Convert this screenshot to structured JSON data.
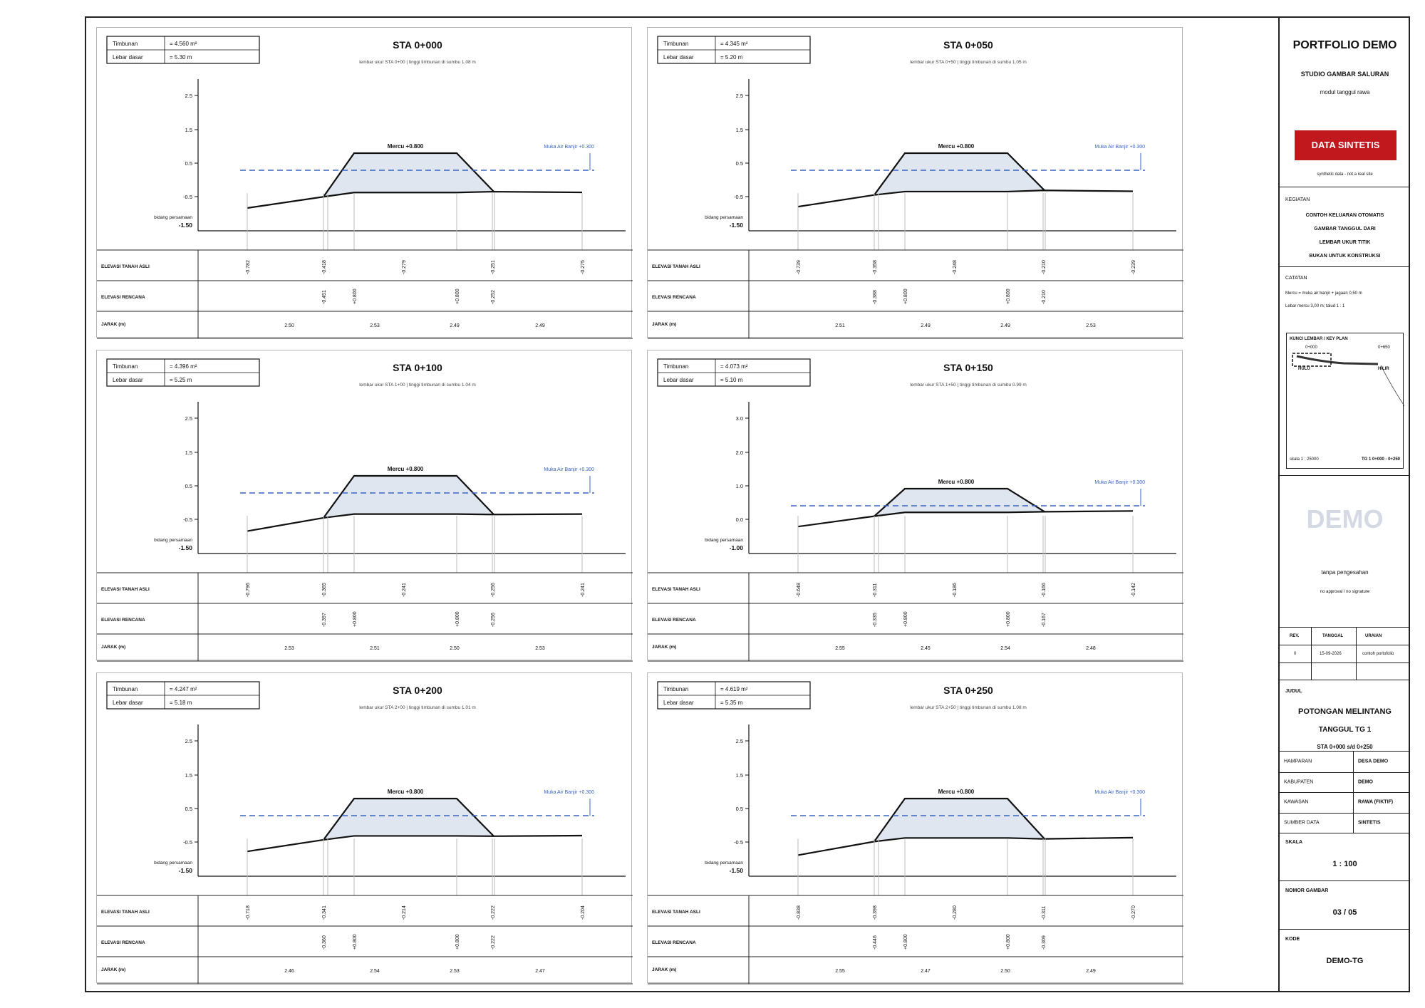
{
  "panels": [
    {
      "sta": "STA 0+000",
      "subtitle": "lembar ukur STA 0+00   |   tinggi timbunan di sumbu 1.08 m",
      "info": {
        "timbunan_label": "Timbunan",
        "timbunan_value": "= 4.560 m²",
        "lebar_label": "Lebar dasar",
        "lebar_value": "= 5.30 m"
      },
      "y_ticks": [
        "2.5",
        "1.5",
        "0.5",
        "-0.5"
      ],
      "datum": "-1.50",
      "datum_label": "bidang persamaan",
      "mercu_label": "Mercu +0.800",
      "water_label": "Muka Air Banjir +0.300",
      "row_labels": [
        "ELEVASI TANAH ASLI",
        "ELEVASI RENCANA",
        "JARAK (m)"
      ],
      "tanah_asli": [
        "-0.782",
        "-0.418",
        "-0.279",
        "-0.251",
        "-0.275"
      ],
      "rencana": [
        "-0.451",
        "+0.800",
        "+0.800",
        "-0.252"
      ],
      "jarak": [
        "2.50",
        "2.53",
        "2.49",
        "2.49"
      ]
    },
    {
      "sta": "STA 0+050",
      "subtitle": "lembar ukur STA 0+50   |   tinggi timbunan di sumbu 1.05 m",
      "info": {
        "timbunan_label": "Timbunan",
        "timbunan_value": "= 4.345 m²",
        "lebar_label": "Lebar dasar",
        "lebar_value": "= 5.20 m"
      },
      "y_ticks": [
        "2.5",
        "1.5",
        "0.5",
        "-0.5"
      ],
      "datum": "-1.50",
      "datum_label": "bidang persamaan",
      "mercu_label": "Mercu +0.800",
      "water_label": "Muka Air Banjir +0.300",
      "row_labels": [
        "ELEVASI TANAH ASLI",
        "ELEVASI RENCANA",
        "JARAK (m)"
      ],
      "tanah_asli": [
        "-0.739",
        "-0.358",
        "-0.248",
        "-0.210",
        "-0.239"
      ],
      "rencana": [
        "-0.388",
        "+0.800",
        "+0.800",
        "-0.210"
      ],
      "jarak": [
        "2.51",
        "2.49",
        "2.49",
        "2.53"
      ]
    },
    {
      "sta": "STA 0+100",
      "subtitle": "lembar ukur STA 1+00   |   tinggi timbunan di sumbu 1.04 m",
      "info": {
        "timbunan_label": "Timbunan",
        "timbunan_value": "= 4.396 m²",
        "lebar_label": "Lebar dasar",
        "lebar_value": "= 5.25 m"
      },
      "y_ticks": [
        "2.5",
        "1.5",
        "0.5",
        "-0.5"
      ],
      "datum": "-1.50",
      "datum_label": "bidang persamaan",
      "mercu_label": "Mercu +0.800",
      "water_label": "Muka Air Banjir +0.300",
      "row_labels": [
        "ELEVASI TANAH ASLI",
        "ELEVASI RENCANA",
        "JARAK (m)"
      ],
      "tanah_asli": [
        "-0.796",
        "-0.365",
        "-0.241",
        "-0.256",
        "-0.241"
      ],
      "rencana": [
        "-0.397",
        "+0.800",
        "+0.800",
        "-0.256"
      ],
      "jarak": [
        "2.53",
        "2.51",
        "2.50",
        "2.53"
      ]
    },
    {
      "sta": "STA 0+150",
      "subtitle": "lembar ukur STA 1+50   |   tinggi timbunan di sumbu 0.99 m",
      "info": {
        "timbunan_label": "Timbunan",
        "timbunan_value": "= 4.073 m²",
        "lebar_label": "Lebar dasar",
        "lebar_value": "= 5.10 m"
      },
      "y_ticks": [
        "3.0",
        "2.0",
        "1.0",
        "0.0"
      ],
      "datum": "-1.00",
      "datum_label": "bidang persamaan",
      "mercu_label": "Mercu +0.800",
      "water_label": "Muka Air Banjir +0.300",
      "row_labels": [
        "ELEVASI TANAH ASLI",
        "ELEVASI RENCANA",
        "JARAK (m)"
      ],
      "tanah_asli": [
        "-0.648",
        "-0.311",
        "-0.186",
        "-0.166",
        "-0.142"
      ],
      "rencana": [
        "-0.335",
        "+0.800",
        "+0.800",
        "-0.167"
      ],
      "jarak": [
        "2.55",
        "2.45",
        "2.54",
        "2.48"
      ]
    },
    {
      "sta": "STA 0+200",
      "subtitle": "lembar ukur STA 2+00   |   tinggi timbunan di sumbu 1.01 m",
      "info": {
        "timbunan_label": "Timbunan",
        "timbunan_value": "= 4.247 m²",
        "lebar_label": "Lebar dasar",
        "lebar_value": "= 5.18 m"
      },
      "y_ticks": [
        "2.5",
        "1.5",
        "0.5",
        "-0.5"
      ],
      "datum": "-1.50",
      "datum_label": "bidang persamaan",
      "mercu_label": "Mercu +0.800",
      "water_label": "Muka Air Banjir +0.300",
      "row_labels": [
        "ELEVASI TANAH ASLI",
        "ELEVASI RENCANA",
        "JARAK (m)"
      ],
      "tanah_asli": [
        "-0.718",
        "-0.341",
        "-0.214",
        "-0.222",
        "-0.204"
      ],
      "rencana": [
        "-0.360",
        "+0.800",
        "+0.800",
        "-0.222"
      ],
      "jarak": [
        "2.46",
        "2.54",
        "2.53",
        "2.47"
      ]
    },
    {
      "sta": "STA 0+250",
      "subtitle": "lembar ukur STA 2+50   |   tinggi timbunan di sumbu 1.08 m",
      "info": {
        "timbunan_label": "Timbunan",
        "timbunan_value": "= 4.619 m²",
        "lebar_label": "Lebar dasar",
        "lebar_value": "= 5.35 m"
      },
      "y_ticks": [
        "2.5",
        "1.5",
        "0.5",
        "-0.5"
      ],
      "datum": "-1.50",
      "datum_label": "bidang persamaan",
      "mercu_label": "Mercu +0.800",
      "water_label": "Muka Air Banjir +0.300",
      "row_labels": [
        "ELEVASI TANAH ASLI",
        "ELEVASI RENCANA",
        "JARAK (m)"
      ],
      "tanah_asli": [
        "-0.838",
        "-0.398",
        "-0.280",
        "-0.311",
        "-0.270"
      ],
      "rencana": [
        "-0.446",
        "+0.800",
        "+0.800",
        "-0.309"
      ],
      "jarak": [
        "2.55",
        "2.47",
        "2.50",
        "2.49"
      ]
    }
  ],
  "title_block": {
    "portfolio": "PORTFOLIO DEMO",
    "studio": "STUDIO GAMBAR SALURAN",
    "module": "modul tanggul rawa",
    "badge": "DATA SINTETIS",
    "synthetic_note": "synthetic data - not a real site",
    "kegiatan_label": "KEGIATAN",
    "kegiatan_lines": [
      "CONTOH KELUARAN OTOMATIS",
      "GAMBAR TANGGUL DARI",
      "LEMBAR UKUR TITIK",
      "BUKAN UNTUK KONSTRUKSI"
    ],
    "catatan_label": "CATATAN",
    "catatan_lines": [
      "Mercu = muka air banjir + jagaan 0,50 m",
      "Lebar mercu 3,00 m; talud 1 : 1"
    ],
    "keyplan": {
      "title": "KUNCI LEMBAR / KEY PLAN",
      "start": "0+000",
      "end": "0+650",
      "hulu": "HULU",
      "hilir": "HILIR",
      "scale": "skala 1 : 25000",
      "ref": "TG 1 0+000 - 0+250"
    },
    "demo_watermark": "DEMO",
    "approval": "tanpa pengesahan",
    "approval_note": "no approval / no signature",
    "rev_headers": [
      "REV.",
      "TANGGAL",
      "URAIAN"
    ],
    "rev_row": [
      "0",
      "15-09-2026",
      "contoh portofolio"
    ],
    "judul_label": "JUDUL",
    "judul_lines": [
      "POTONGAN MELINTANG",
      "TANGGUL TG 1",
      "STA 0+000 s/d 0+250"
    ],
    "meta": [
      {
        "k": "HAMPARAN",
        "v": "DESA DEMO"
      },
      {
        "k": "KABUPATEN",
        "v": "DEMO"
      },
      {
        "k": "KAWASAN",
        "v": "RAWA (FIKTIF)"
      },
      {
        "k": "SUMBER DATA",
        "v": "SINTETIS"
      }
    ],
    "skala_label": "SKALA",
    "skala_value": "1 : 100",
    "nomor_label": "NOMOR GAMBAR",
    "nomor_value": "03 / 05",
    "kode_label": "KODE",
    "kode_value": "DEMO-TG"
  },
  "colors": {
    "fill": "#dfe6f0",
    "water": "#3a64c4",
    "line": "#111111",
    "badge": "#c0181c"
  }
}
